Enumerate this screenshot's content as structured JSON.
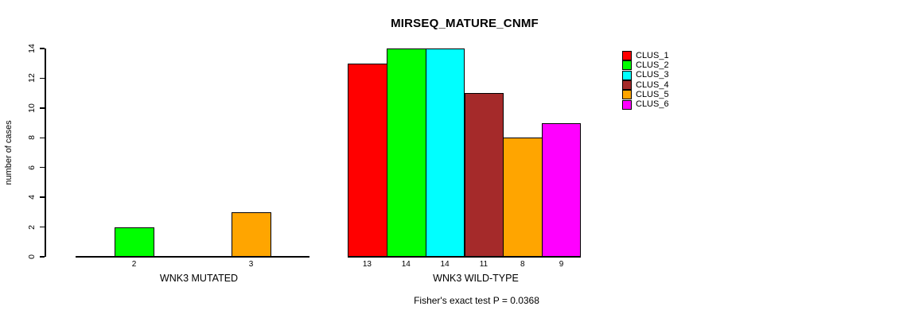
{
  "chart_data": {
    "type": "bar",
    "title": "MIRSEQ_MATURE_CNMF",
    "ylabel": "number of cases",
    "ylim": [
      0,
      14
    ],
    "yticks": [
      0,
      2,
      4,
      6,
      8,
      10,
      12,
      14
    ],
    "grid": false,
    "legend_position": "right",
    "clusters": [
      "CLUS_1",
      "CLUS_2",
      "CLUS_3",
      "CLUS_4",
      "CLUS_5",
      "CLUS_6"
    ],
    "cluster_colors": [
      "#FF0000",
      "#00FF00",
      "#00FFFF",
      "#A52A2A",
      "#FFA500",
      "#FF00FF"
    ],
    "groups": [
      {
        "label": "WNK3 MUTATED",
        "values": [
          0,
          2,
          0,
          0,
          3,
          0
        ],
        "bar_labels": [
          "",
          "2",
          "",
          "",
          "3",
          ""
        ]
      },
      {
        "label": "WNK3 WILD-TYPE",
        "values": [
          13,
          14,
          14,
          11,
          8,
          9
        ],
        "bar_labels": [
          "13",
          "14",
          "14",
          "11",
          "8",
          "9"
        ]
      }
    ],
    "annotation": "Fisher's exact test P = 0.0368"
  }
}
